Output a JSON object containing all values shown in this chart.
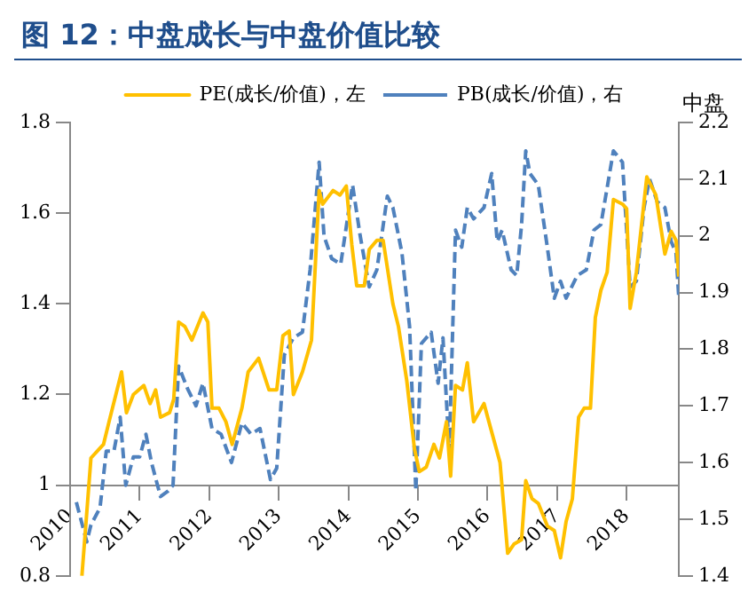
{
  "chart_data": {
    "type": "line",
    "title": "图 12：中盘成长与中盘价值比较",
    "y2label": "中盘",
    "xlim": [
      2010,
      2018.75
    ],
    "xticks": [
      2010,
      2011,
      2012,
      2013,
      2014,
      2015,
      2016,
      2017,
      2018
    ],
    "ylim": [
      0.8,
      1.8
    ],
    "yticks": [
      0.8,
      1,
      1.2,
      1.4,
      1.6,
      1.8
    ],
    "y2lim": [
      1.4,
      2.2
    ],
    "y2ticks": [
      1.4,
      1.5,
      1.6,
      1.7,
      1.8,
      1.9,
      2,
      2.1,
      2.2
    ],
    "grid": false,
    "legend": "top",
    "marker": "none",
    "series": [
      {
        "name": "PE(成长/价值)，左",
        "color": "#ffc000",
        "line_style": "solid",
        "x": [
          2010.17,
          2010.3,
          2010.48,
          2010.56,
          2010.74,
          2010.81,
          2010.91,
          2011.06,
          2011.15,
          2011.23,
          2011.3,
          2011.43,
          2011.49,
          2011.56,
          2011.65,
          2011.75,
          2011.91,
          2011.98,
          2012.04,
          2012.14,
          2012.24,
          2012.33,
          2012.47,
          2012.56,
          2012.71,
          2012.86,
          2012.97,
          2013.06,
          2013.15,
          2013.21,
          2013.34,
          2013.47,
          2013.58,
          2013.63,
          2013.78,
          2013.88,
          2013.97,
          2014.05,
          2014.12,
          2014.23,
          2014.3,
          2014.41,
          2014.5,
          2014.64,
          2014.72,
          2014.84,
          2014.95,
          2015.02,
          2015.12,
          2015.23,
          2015.31,
          2015.41,
          2015.47,
          2015.54,
          2015.64,
          2015.71,
          2015.8,
          2015.95,
          2016.02,
          2016.18,
          2016.29,
          2016.38,
          2016.49,
          2016.55,
          2016.64,
          2016.73,
          2016.86,
          2016.96,
          2017.05,
          2017.13,
          2017.22,
          2017.31,
          2017.39,
          2017.48,
          2017.55,
          2017.63,
          2017.72,
          2017.81,
          2017.94,
          2018,
          2018.05,
          2018.14,
          2018.29,
          2018.42,
          2018.55,
          2018.64,
          2018.71,
          2018.75
        ],
        "values": [
          0.8,
          1.06,
          1.09,
          1.14,
          1.25,
          1.16,
          1.2,
          1.22,
          1.18,
          1.21,
          1.15,
          1.16,
          1.19,
          1.36,
          1.35,
          1.32,
          1.38,
          1.36,
          1.17,
          1.17,
          1.14,
          1.09,
          1.17,
          1.25,
          1.28,
          1.21,
          1.21,
          1.33,
          1.34,
          1.2,
          1.25,
          1.32,
          1.65,
          1.62,
          1.65,
          1.64,
          1.66,
          1.53,
          1.44,
          1.44,
          1.52,
          1.54,
          1.54,
          1.4,
          1.35,
          1.23,
          1.08,
          1.03,
          1.04,
          1.09,
          1.06,
          1.14,
          1.02,
          1.22,
          1.21,
          1.27,
          1.14,
          1.18,
          1.14,
          1.05,
          0.85,
          0.87,
          0.88,
          1.01,
          0.97,
          0.96,
          0.91,
          0.9,
          0.84,
          0.92,
          0.97,
          1.15,
          1.17,
          1.17,
          1.37,
          1.43,
          1.47,
          1.63,
          1.62,
          1.61,
          1.39,
          1.47,
          1.68,
          1.64,
          1.51,
          1.56,
          1.54,
          1.46
        ]
      },
      {
        "name": "PB(成长/价值)，右",
        "color": "#4f81bd",
        "line_style": "dashed",
        "axis": "y2",
        "x": [
          2010.09,
          2010.24,
          2010.3,
          2010.43,
          2010.52,
          2010.63,
          2010.72,
          2010.8,
          2010.91,
          2011,
          2011.09,
          2011.17,
          2011.3,
          2011.41,
          2011.48,
          2011.56,
          2011.69,
          2011.81,
          2011.91,
          2012.04,
          2012.17,
          2012.32,
          2012.47,
          2012.6,
          2012.73,
          2012.88,
          2012.97,
          2013.08,
          2013.21,
          2013.34,
          2013.45,
          2013.58,
          2013.65,
          2013.76,
          2013.89,
          2014.06,
          2014.17,
          2014.3,
          2014.41,
          2014.56,
          2014.64,
          2014.77,
          2014.88,
          2014.97,
          2015.05,
          2015.19,
          2015.29,
          2015.36,
          2015.45,
          2015.54,
          2015.63,
          2015.71,
          2015.8,
          2015.95,
          2016.06,
          2016.14,
          2016.21,
          2016.34,
          2016.42,
          2016.49,
          2016.55,
          2016.61,
          2016.73,
          2016.86,
          2016.96,
          2017.05,
          2017.13,
          2017.29,
          2017.42,
          2017.53,
          2017.63,
          2017.81,
          2017.94,
          2018.05,
          2018.14,
          2018.25,
          2018.33,
          2018.44,
          2018.55,
          2018.64,
          2018.71,
          2018.75
        ],
        "values": [
          1.53,
          1.46,
          1.49,
          1.52,
          1.62,
          1.62,
          1.68,
          1.56,
          1.61,
          1.61,
          1.65,
          1.6,
          1.54,
          1.55,
          1.56,
          1.77,
          1.73,
          1.7,
          1.74,
          1.66,
          1.65,
          1.6,
          1.67,
          1.65,
          1.66,
          1.57,
          1.59,
          1.79,
          1.82,
          1.83,
          1.94,
          2.13,
          2,
          1.96,
          1.95,
          2.09,
          2,
          1.91,
          1.94,
          2.07,
          2.05,
          1.97,
          1.84,
          1.55,
          1.81,
          1.83,
          1.74,
          1.82,
          1.62,
          2.01,
          1.98,
          2.05,
          2.03,
          2.05,
          2.11,
          1.99,
          2.01,
          1.94,
          1.93,
          2.02,
          2.15,
          2.11,
          2.09,
          1.98,
          1.89,
          1.92,
          1.89,
          1.93,
          1.94,
          2.01,
          2.02,
          2.15,
          2.13,
          1.91,
          1.92,
          2.05,
          2.1,
          2.06,
          2.05,
          1.99,
          1.97,
          1.89
        ]
      }
    ]
  }
}
